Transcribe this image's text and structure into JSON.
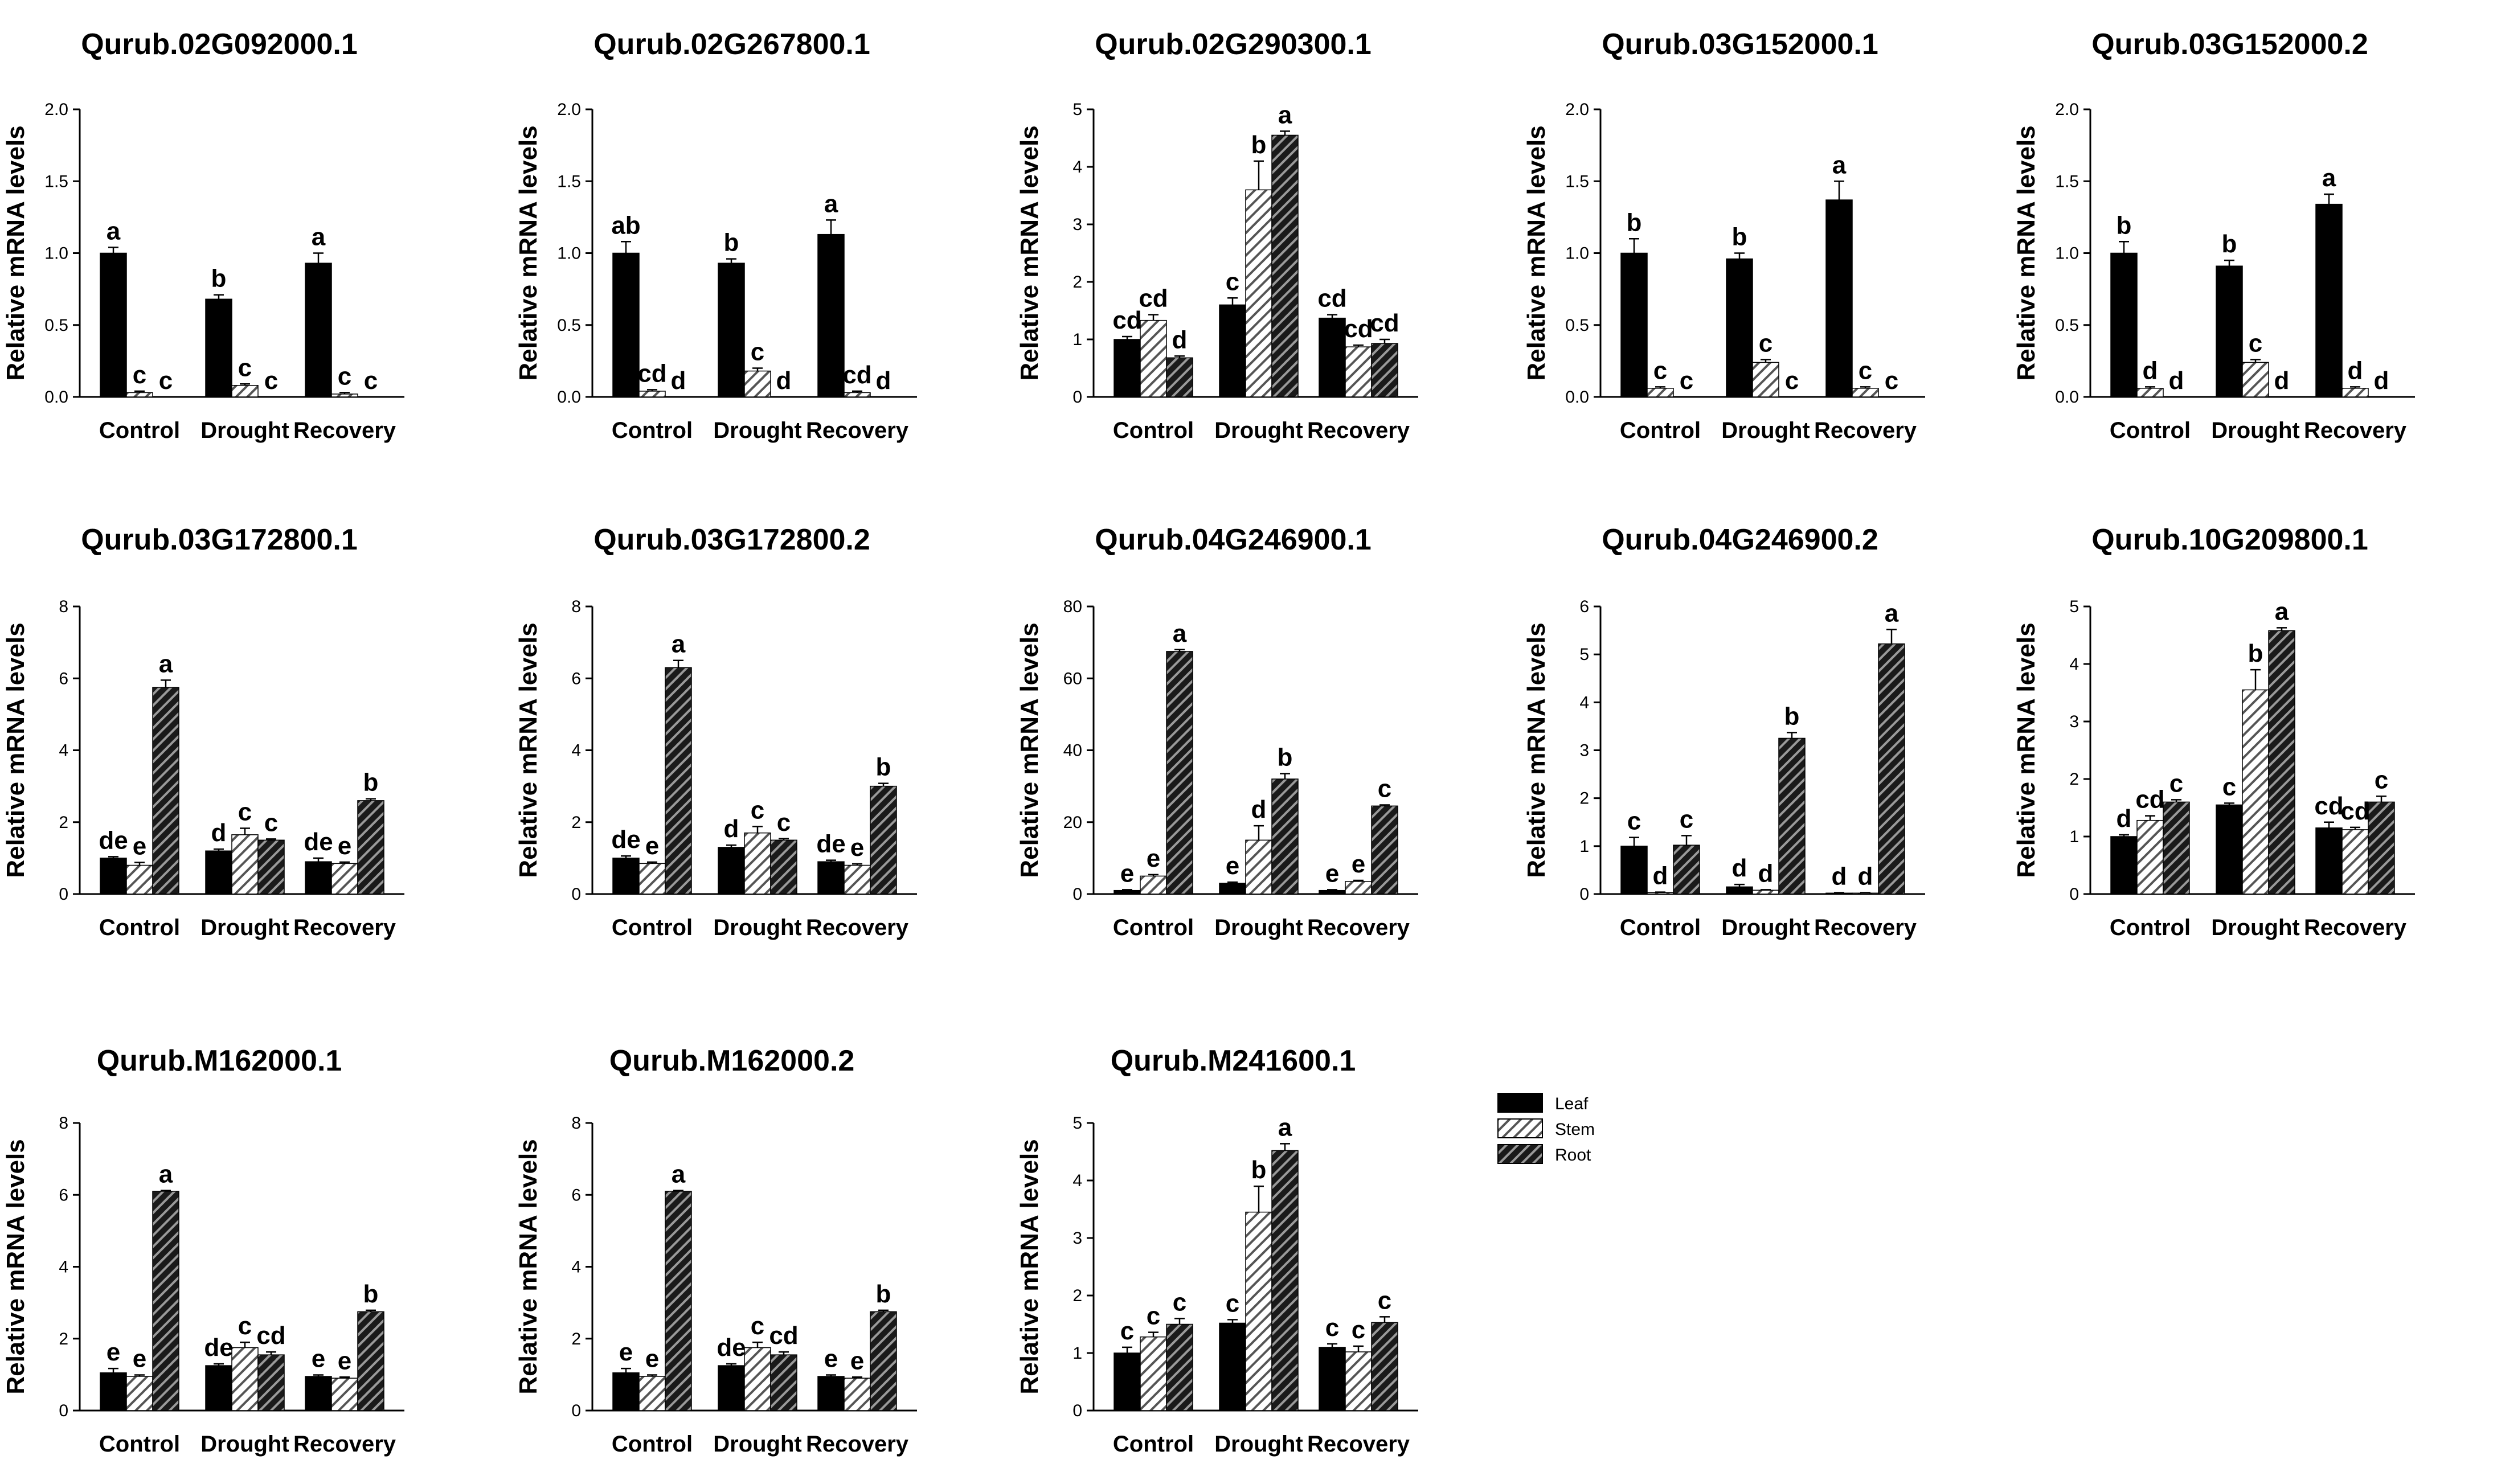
{
  "figure": {
    "ylabel": "Relative mRNA levels",
    "categories": [
      "Control",
      "Drought",
      "Recovery"
    ],
    "legend": {
      "entries": [
        {
          "name": "Leaf",
          "pattern": "solid-black"
        },
        {
          "name": "Stem",
          "pattern": "light-hatch"
        },
        {
          "name": "Root",
          "pattern": "dark-hatch"
        }
      ]
    }
  },
  "chart_data": [
    {
      "type": "bar",
      "title": "Qurub.02G092000.1",
      "ylabel": "Relative mRNA levels",
      "categories": [
        "Control",
        "Drought",
        "Recovery"
      ],
      "ylim": [
        0,
        2
      ],
      "yticks": [
        "0.0",
        "0.5",
        "1.0",
        "1.5",
        "2.0"
      ],
      "series": [
        {
          "name": "Leaf",
          "values": [
            1.0,
            0.68,
            0.93
          ],
          "errors": [
            0.04,
            0.03,
            0.07
          ],
          "letters": [
            "a",
            "b",
            "a"
          ]
        },
        {
          "name": "Stem",
          "values": [
            0.03,
            0.08,
            0.02
          ],
          "errors": [
            0.01,
            0.01,
            0.01
          ],
          "letters": [
            "c",
            "c",
            "c"
          ]
        },
        {
          "name": "Root",
          "values": [
            0,
            0,
            0
          ],
          "errors": [
            0,
            0,
            0
          ],
          "letters": [
            "c",
            "c",
            "c"
          ]
        }
      ]
    },
    {
      "type": "bar",
      "title": "Qurub.02G267800.1",
      "ylabel": "Relative mRNA levels",
      "categories": [
        "Control",
        "Drought",
        "Recovery"
      ],
      "ylim": [
        0,
        2
      ],
      "yticks": [
        "0.0",
        "0.5",
        "1.0",
        "1.5",
        "2.0"
      ],
      "series": [
        {
          "name": "Leaf",
          "values": [
            1.0,
            0.93,
            1.13
          ],
          "errors": [
            0.08,
            0.03,
            0.1
          ],
          "letters": [
            "ab",
            "b",
            "a"
          ]
        },
        {
          "name": "Stem",
          "values": [
            0.04,
            0.18,
            0.03
          ],
          "errors": [
            0.01,
            0.02,
            0.01
          ],
          "letters": [
            "cd",
            "c",
            "cd"
          ]
        },
        {
          "name": "Root",
          "values": [
            0,
            0,
            0
          ],
          "errors": [
            0,
            0,
            0
          ],
          "letters": [
            "d",
            "d",
            "d"
          ]
        }
      ]
    },
    {
      "type": "bar",
      "title": "Qurub.02G290300.1",
      "ylabel": "Relative mRNA levels",
      "categories": [
        "Control",
        "Drought",
        "Recovery"
      ],
      "ylim": [
        0,
        5
      ],
      "yticks": [
        "0",
        "1",
        "2",
        "3",
        "4",
        "5"
      ],
      "series": [
        {
          "name": "Leaf",
          "values": [
            1.0,
            1.6,
            1.37
          ],
          "errors": [
            0.05,
            0.12,
            0.06
          ],
          "letters": [
            "cd",
            "c",
            "cd"
          ]
        },
        {
          "name": "Stem",
          "values": [
            1.33,
            3.6,
            0.87
          ],
          "errors": [
            0.1,
            0.5,
            0.03
          ],
          "letters": [
            "cd",
            "b",
            "cd"
          ]
        },
        {
          "name": "Root",
          "values": [
            0.68,
            4.55,
            0.93
          ],
          "errors": [
            0.03,
            0.07,
            0.07
          ],
          "letters": [
            "d",
            "a",
            "cd"
          ]
        }
      ]
    },
    {
      "type": "bar",
      "title": "Qurub.03G152000.1",
      "ylabel": "Relative mRNA levels",
      "categories": [
        "Control",
        "Drought",
        "Recovery"
      ],
      "ylim": [
        0,
        2
      ],
      "yticks": [
        "0.0",
        "0.5",
        "1.0",
        "1.5",
        "2.0"
      ],
      "series": [
        {
          "name": "Leaf",
          "values": [
            1.0,
            0.96,
            1.37
          ],
          "errors": [
            0.1,
            0.04,
            0.13
          ],
          "letters": [
            "b",
            "b",
            "a"
          ]
        },
        {
          "name": "Stem",
          "values": [
            0.06,
            0.24,
            0.06
          ],
          "errors": [
            0.01,
            0.02,
            0.01
          ],
          "letters": [
            "c",
            "c",
            "c"
          ]
        },
        {
          "name": "Root",
          "values": [
            0,
            0,
            0
          ],
          "errors": [
            0,
            0,
            0
          ],
          "letters": [
            "c",
            "c",
            "c"
          ]
        }
      ]
    },
    {
      "type": "bar",
      "title": "Qurub.03G152000.2",
      "ylabel": "Relative mRNA levels",
      "categories": [
        "Control",
        "Drought",
        "Recovery"
      ],
      "ylim": [
        0,
        2
      ],
      "yticks": [
        "0.0",
        "0.5",
        "1.0",
        "1.5",
        "2.0"
      ],
      "series": [
        {
          "name": "Leaf",
          "values": [
            1.0,
            0.91,
            1.34
          ],
          "errors": [
            0.08,
            0.04,
            0.07
          ],
          "letters": [
            "b",
            "b",
            "a"
          ]
        },
        {
          "name": "Stem",
          "values": [
            0.06,
            0.24,
            0.06
          ],
          "errors": [
            0.01,
            0.02,
            0.01
          ],
          "letters": [
            "d",
            "c",
            "d"
          ]
        },
        {
          "name": "Root",
          "values": [
            0,
            0,
            0
          ],
          "errors": [
            0,
            0,
            0
          ],
          "letters": [
            "d",
            "d",
            "d"
          ]
        }
      ]
    },
    {
      "type": "bar",
      "title": "Qurub.03G172800.1",
      "ylabel": "Relative mRNA levels",
      "categories": [
        "Control",
        "Drought",
        "Recovery"
      ],
      "ylim": [
        0,
        8
      ],
      "yticks": [
        "0",
        "2",
        "4",
        "6",
        "8"
      ],
      "series": [
        {
          "name": "Leaf",
          "values": [
            1.0,
            1.2,
            0.9
          ],
          "errors": [
            0.04,
            0.05,
            0.1
          ],
          "letters": [
            "de",
            "d",
            "de"
          ]
        },
        {
          "name": "Stem",
          "values": [
            0.8,
            1.65,
            0.85
          ],
          "errors": [
            0.08,
            0.18,
            0.04
          ],
          "letters": [
            "e",
            "c",
            "e"
          ]
        },
        {
          "name": "Root",
          "values": [
            5.75,
            1.5,
            2.6
          ],
          "errors": [
            0.2,
            0.03,
            0.05
          ],
          "letters": [
            "a",
            "c",
            "b"
          ]
        }
      ]
    },
    {
      "type": "bar",
      "title": "Qurub.03G172800.2",
      "ylabel": "Relative mRNA levels",
      "categories": [
        "Control",
        "Drought",
        "Recovery"
      ],
      "ylim": [
        0,
        8
      ],
      "yticks": [
        "0",
        "2",
        "4",
        "6",
        "8"
      ],
      "series": [
        {
          "name": "Leaf",
          "values": [
            1.0,
            1.3,
            0.9
          ],
          "errors": [
            0.06,
            0.06,
            0.04
          ],
          "letters": [
            "de",
            "d",
            "de"
          ]
        },
        {
          "name": "Stem",
          "values": [
            0.85,
            1.7,
            0.8
          ],
          "errors": [
            0.04,
            0.18,
            0.04
          ],
          "letters": [
            "e",
            "c",
            "e"
          ]
        },
        {
          "name": "Root",
          "values": [
            6.3,
            1.5,
            3.0
          ],
          "errors": [
            0.2,
            0.04,
            0.08
          ],
          "letters": [
            "a",
            "c",
            "b"
          ]
        }
      ]
    },
    {
      "type": "bar",
      "title": "Qurub.04G246900.1",
      "ylabel": "Relative mRNA levels",
      "categories": [
        "Control",
        "Drought",
        "Recovery"
      ],
      "ylim": [
        0,
        80
      ],
      "yticks": [
        "0",
        "20",
        "40",
        "60",
        "80"
      ],
      "series": [
        {
          "name": "Leaf",
          "values": [
            1.0,
            3.0,
            1.0
          ],
          "errors": [
            0.2,
            0.3,
            0.2
          ],
          "letters": [
            "e",
            "e",
            "e"
          ]
        },
        {
          "name": "Stem",
          "values": [
            5.0,
            15.0,
            3.5
          ],
          "errors": [
            0.4,
            4.0,
            0.3
          ],
          "letters": [
            "e",
            "d",
            "e"
          ]
        },
        {
          "name": "Root",
          "values": [
            67.5,
            32.0,
            24.5
          ],
          "errors": [
            0.5,
            1.5,
            0.3
          ],
          "letters": [
            "a",
            "b",
            "c"
          ]
        }
      ]
    },
    {
      "type": "bar",
      "title": "Qurub.04G246900.2",
      "ylabel": "Relative mRNA levels",
      "categories": [
        "Control",
        "Drought",
        "Recovery"
      ],
      "ylim": [
        0,
        6
      ],
      "yticks": [
        "0",
        "1",
        "2",
        "3",
        "4",
        "5",
        "6"
      ],
      "series": [
        {
          "name": "Leaf",
          "values": [
            1.0,
            0.15,
            0.02
          ],
          "errors": [
            0.18,
            0.05,
            0.01
          ],
          "letters": [
            "c",
            "d",
            "d"
          ]
        },
        {
          "name": "Stem",
          "values": [
            0.03,
            0.08,
            0.02
          ],
          "errors": [
            0.01,
            0.01,
            0.01
          ],
          "letters": [
            "d",
            "d",
            "d"
          ]
        },
        {
          "name": "Root",
          "values": [
            1.02,
            3.25,
            5.22
          ],
          "errors": [
            0.2,
            0.12,
            0.3
          ],
          "letters": [
            "c",
            "b",
            "a"
          ]
        }
      ]
    },
    {
      "type": "bar",
      "title": "Qurub.10G209800.1",
      "ylabel": "Relative mRNA levels",
      "categories": [
        "Control",
        "Drought",
        "Recovery"
      ],
      "ylim": [
        0,
        5
      ],
      "yticks": [
        "0",
        "1",
        "2",
        "3",
        "4",
        "5"
      ],
      "series": [
        {
          "name": "Leaf",
          "values": [
            1.0,
            1.55,
            1.15
          ],
          "errors": [
            0.03,
            0.03,
            0.1
          ],
          "letters": [
            "d",
            "c",
            "cd"
          ]
        },
        {
          "name": "Stem",
          "values": [
            1.28,
            3.55,
            1.12
          ],
          "errors": [
            0.08,
            0.35,
            0.04
          ],
          "letters": [
            "cd",
            "b",
            "cd"
          ]
        },
        {
          "name": "Root",
          "values": [
            1.6,
            4.58,
            1.6
          ],
          "errors": [
            0.04,
            0.05,
            0.1
          ],
          "letters": [
            "c",
            "a",
            "c"
          ]
        }
      ]
    },
    {
      "type": "bar",
      "title": "Qurub.M162000.1",
      "ylabel": "Relative mRNA levels",
      "categories": [
        "Control",
        "Drought",
        "Recovery"
      ],
      "ylim": [
        0,
        8
      ],
      "yticks": [
        "0",
        "2",
        "4",
        "6",
        "8"
      ],
      "series": [
        {
          "name": "Leaf",
          "values": [
            1.05,
            1.25,
            0.95
          ],
          "errors": [
            0.12,
            0.05,
            0.04
          ],
          "letters": [
            "e",
            "de",
            "e"
          ]
        },
        {
          "name": "Stem",
          "values": [
            0.95,
            1.75,
            0.9
          ],
          "errors": [
            0.04,
            0.15,
            0.03
          ],
          "letters": [
            "e",
            "c",
            "e"
          ]
        },
        {
          "name": "Root",
          "values": [
            6.1,
            1.55,
            2.75
          ],
          "errors": [
            0.02,
            0.08,
            0.04
          ],
          "letters": [
            "a",
            "cd",
            "b"
          ]
        }
      ]
    },
    {
      "type": "bar",
      "title": "Qurub.M162000.2",
      "ylabel": "Relative mRNA levels",
      "categories": [
        "Control",
        "Drought",
        "Recovery"
      ],
      "ylim": [
        0,
        8
      ],
      "yticks": [
        "0",
        "2",
        "4",
        "6",
        "8"
      ],
      "series": [
        {
          "name": "Leaf",
          "values": [
            1.05,
            1.25,
            0.95
          ],
          "errors": [
            0.12,
            0.05,
            0.04
          ],
          "letters": [
            "e",
            "de",
            "e"
          ]
        },
        {
          "name": "Stem",
          "values": [
            0.95,
            1.75,
            0.9
          ],
          "errors": [
            0.04,
            0.15,
            0.03
          ],
          "letters": [
            "e",
            "c",
            "e"
          ]
        },
        {
          "name": "Root",
          "values": [
            6.1,
            1.55,
            2.75
          ],
          "errors": [
            0.02,
            0.08,
            0.04
          ],
          "letters": [
            "a",
            "cd",
            "b"
          ]
        }
      ]
    },
    {
      "type": "bar",
      "title": "Qurub.M241600.1",
      "ylabel": "Relative mRNA levels",
      "categories": [
        "Control",
        "Drought",
        "Recovery"
      ],
      "ylim": [
        0,
        5
      ],
      "yticks": [
        "0",
        "1",
        "2",
        "3",
        "4",
        "5"
      ],
      "series": [
        {
          "name": "Leaf",
          "values": [
            1.0,
            1.52,
            1.1
          ],
          "errors": [
            0.1,
            0.06,
            0.06
          ],
          "letters": [
            "c",
            "c",
            "c"
          ]
        },
        {
          "name": "Stem",
          "values": [
            1.28,
            3.45,
            1.02
          ],
          "errors": [
            0.08,
            0.45,
            0.1
          ],
          "letters": [
            "c",
            "b",
            "c"
          ]
        },
        {
          "name": "Root",
          "values": [
            1.5,
            4.52,
            1.53
          ],
          "errors": [
            0.1,
            0.12,
            0.1
          ],
          "letters": [
            "c",
            "a",
            "c"
          ]
        }
      ]
    }
  ]
}
